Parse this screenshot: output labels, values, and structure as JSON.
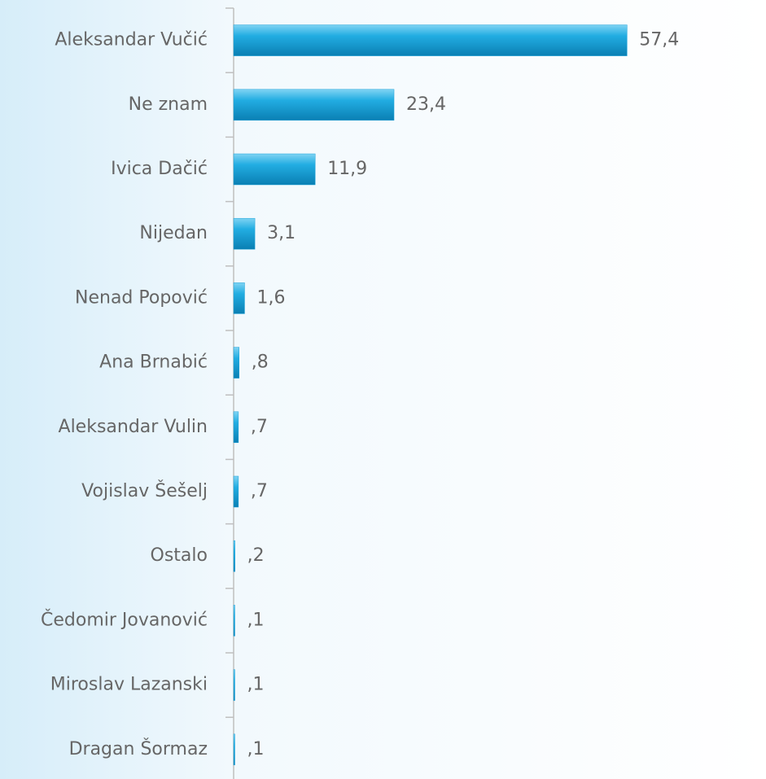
{
  "chart_data": {
    "type": "bar",
    "orientation": "horizontal",
    "categories": [
      "Aleksandar Vučić",
      "Ne znam",
      "Ivica Dačić",
      "Nijedan",
      "Nenad Popović",
      "Ana Brnabić",
      "Aleksandar Vulin",
      "Vojislav Šešelj",
      "Ostalo",
      "Čedomir Jovanović",
      "Miroslav Lazanski",
      "Dragan Šormaz"
    ],
    "values": [
      57.4,
      23.4,
      11.9,
      3.1,
      1.6,
      0.8,
      0.7,
      0.7,
      0.2,
      0.1,
      0.1,
      0.1
    ],
    "value_labels": [
      "57,4",
      "23,4",
      "11,9",
      "3,1",
      "1,6",
      ",8",
      ",7",
      ",7",
      ",2",
      ",1",
      ",1",
      ",1"
    ],
    "color": "#1ba2d8"
  }
}
